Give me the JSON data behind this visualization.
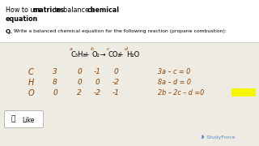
{
  "bg_color": "#eeebe3",
  "white_color": "#ffffff",
  "title_parts": [
    {
      "text": "How to use ",
      "bold": false
    },
    {
      "text": "matrices",
      "bold": true
    },
    {
      "text": " to balance a ",
      "bold": false
    },
    {
      "text": "chemical",
      "bold": true
    }
  ],
  "title_line2": "equation",
  "q_label": "Q.",
  "question_text": "Write a balanced chemical equation for the following reaction (propane combustion):",
  "eq_parts": [
    {
      "text": "a",
      "super": true,
      "color": "hw"
    },
    {
      "text": "C₃H₈",
      "super": false,
      "color": "black"
    },
    {
      "text": " + ",
      "super": false,
      "color": "black"
    },
    {
      "text": "b",
      "super": true,
      "color": "hw"
    },
    {
      "text": "O₂",
      "super": false,
      "color": "black"
    },
    {
      "text": " → ",
      "super": false,
      "color": "black"
    },
    {
      "text": "c",
      "super": true,
      "color": "hw"
    },
    {
      "text": "CO₂",
      "super": false,
      "color": "black"
    },
    {
      "text": " + ",
      "super": false,
      "color": "black"
    },
    {
      "text": "d",
      "super": true,
      "color": "hw"
    },
    {
      "text": "H₂O",
      "super": false,
      "color": "black"
    }
  ],
  "row_labels": [
    "C",
    "H",
    "O"
  ],
  "matrix_rows": [
    [
      "3",
      "0",
      "-1",
      "0"
    ],
    [
      "8",
      "0",
      "0",
      "-2"
    ],
    [
      "0",
      "2",
      "-2",
      "-1"
    ]
  ],
  "equations_right": [
    "3a – c = 0",
    "8a – d = 0",
    "2b – 2c – d =0"
  ],
  "highlight_color": "#f5f500",
  "hw_color": "#8B4000",
  "like_text": "Like",
  "studyforce_text": "StudyForce",
  "sep_color": "#cccccc",
  "like_box_color": "#e8e8e8"
}
